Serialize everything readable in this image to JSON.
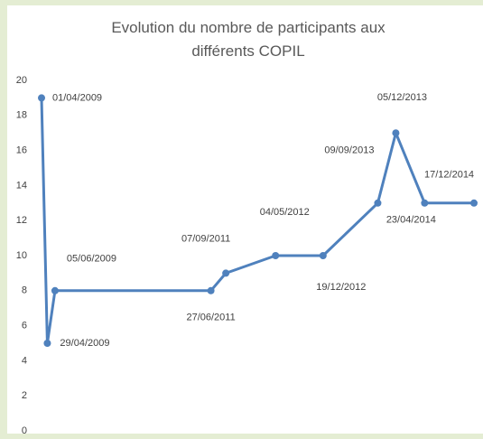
{
  "chart_data": {
    "type": "line",
    "title": "Evolution du nombre de participants aux différents COPIL",
    "x": [
      "01/04/2009",
      "29/04/2009",
      "05/06/2009",
      "27/06/2011",
      "07/09/2011",
      "04/05/2012",
      "19/12/2012",
      "09/09/2013",
      "05/12/2013",
      "23/04/2014",
      "17/12/2014"
    ],
    "values": [
      19,
      5,
      8,
      8,
      9,
      10,
      10,
      13,
      17,
      13,
      13
    ],
    "color": "#4f81bd",
    "ylim": [
      0,
      20
    ],
    "yticks": [
      0,
      2,
      4,
      6,
      8,
      10,
      12,
      14,
      16,
      18,
      20
    ],
    "grid": false
  }
}
